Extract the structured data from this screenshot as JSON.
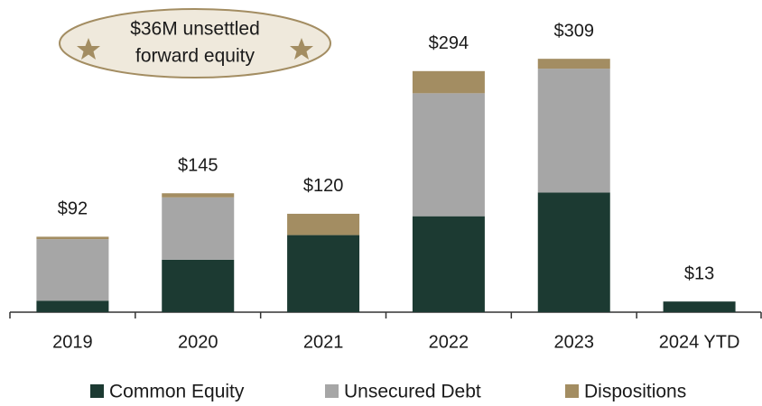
{
  "chart_data": {
    "type": "stacked_bar",
    "categories": [
      "2019",
      "2020",
      "2021",
      "2022",
      "2023",
      "2024 YTD"
    ],
    "series": [
      {
        "name": "Common Equity",
        "color": "#1c3a32",
        "values": [
          14,
          64,
          94,
          117,
          146,
          13
        ]
      },
      {
        "name": "Unsecured Debt",
        "color": "#a6a6a6",
        "values": [
          75,
          76,
          0,
          150,
          151,
          0
        ]
      },
      {
        "name": "Dispositions",
        "color": "#a38d62",
        "values": [
          3,
          5,
          26,
          27,
          12,
          0
        ]
      }
    ],
    "totals": [
      92,
      145,
      120,
      294,
      309,
      13
    ],
    "total_labels": [
      "$92",
      "$145",
      "$120",
      "$294",
      "$309",
      "$13"
    ],
    "annotation": [
      "$36M unsettled",
      "forward equity"
    ],
    "ylim": [
      0,
      340
    ]
  }
}
